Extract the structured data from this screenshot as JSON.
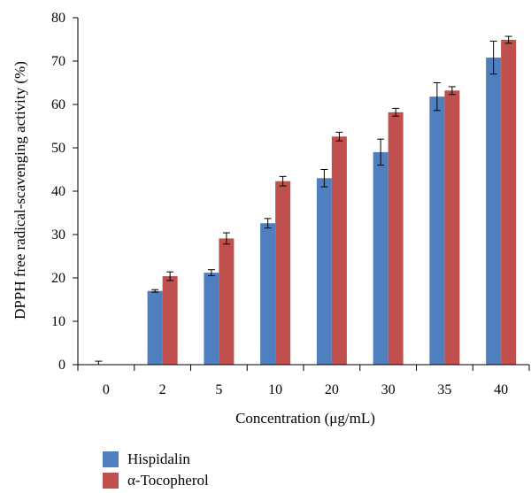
{
  "chart_data": {
    "type": "bar",
    "title": "",
    "xlabel": "Concentration (μg/mL)",
    "ylabel": "DPPH free radical-scavenging activity (%)",
    "ylim": [
      0,
      80
    ],
    "yticks": [
      0,
      10,
      20,
      30,
      40,
      50,
      60,
      70,
      80
    ],
    "categories": [
      "0",
      "2",
      "5",
      "10",
      "20",
      "30",
      "35",
      "40"
    ],
    "grid": false,
    "legend_position": "bottom-left",
    "series": [
      {
        "name": "Hispidalin",
        "color": "#4F7FBF",
        "values": [
          0,
          17,
          21.2,
          32.6,
          43,
          49,
          61.8,
          70.8
        ],
        "errors": [
          0.8,
          0.3,
          0.7,
          1.1,
          2.0,
          3.0,
          3.2,
          3.8
        ]
      },
      {
        "name": "α-Tocopherol",
        "color": "#C0504D",
        "values": [
          0,
          20.4,
          29.1,
          42.3,
          52.6,
          58.2,
          63.2,
          74.9
        ],
        "errors": [
          0,
          1.0,
          1.3,
          1.1,
          1.0,
          0.9,
          0.9,
          0.8
        ]
      }
    ]
  }
}
